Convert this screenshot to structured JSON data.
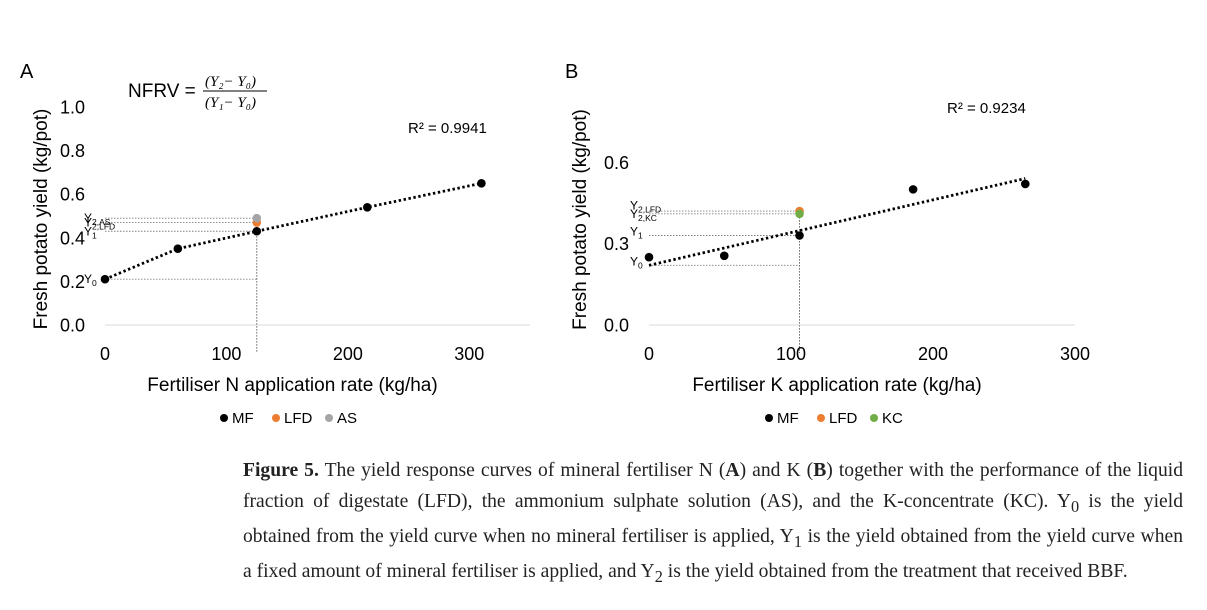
{
  "panels": [
    {
      "label": "A",
      "formula": {
        "lhs": "NFRV =",
        "numerator": "(Y₂− Y₀)",
        "denominator": "(Y₁− Y₀)"
      },
      "r2": "R² = 0.9941",
      "chart_data": {
        "type": "scatter",
        "xlabel": "Fertiliser N application rate (kg/ha)",
        "ylabel": "Fresh potato yield (kg/pot)",
        "xlim": [
          0,
          350
        ],
        "ylim": [
          0,
          1.0
        ],
        "xticks": [
          0,
          100,
          200,
          300
        ],
        "xtick_labels": [
          "0",
          "100",
          "200",
          "300"
        ],
        "yticks": [
          0,
          0.2,
          0.4,
          0.6,
          0.8,
          1.0
        ],
        "ytick_labels": [
          "0.0",
          "0.2",
          "0.4",
          "0.6",
          "0.8",
          "1.0"
        ],
        "series": [
          {
            "name": "MF",
            "color": "#000000",
            "points": [
              [
                0,
                0.21
              ],
              [
                60,
                0.35
              ],
              [
                125,
                0.43
              ],
              [
                216,
                0.54
              ],
              [
                310,
                0.65
              ]
            ]
          },
          {
            "name": "LFD",
            "color": "#ed7d31",
            "points": [
              [
                125,
                0.47
              ]
            ]
          },
          {
            "name": "AS",
            "color": "#a5a5a5",
            "points": [
              [
                125,
                0.49
              ]
            ]
          }
        ],
        "trendline": {
          "style": "dotted",
          "x": [
            0,
            60,
            125,
            216,
            310
          ],
          "y": [
            0.21,
            0.35,
            0.43,
            0.54,
            0.65
          ]
        },
        "reference_lines": {
          "x": 125,
          "y": [
            0.21,
            0.43,
            0.47,
            0.49
          ]
        },
        "annotations": [
          {
            "main": "Y",
            "sub": "2,AS",
            "x": 0,
            "y": 0.49
          },
          {
            "main": "Y",
            "sub": "2,LFD",
            "x": 0,
            "y": 0.47
          },
          {
            "main": "Y",
            "sub": "1",
            "x": 0,
            "y": 0.43
          },
          {
            "main": "Y",
            "sub": "0",
            "x": 0,
            "y": 0.21
          }
        ],
        "legend_position": "bottom"
      }
    },
    {
      "label": "B",
      "r2": "R² = 0.9234",
      "chart_data": {
        "type": "scatter",
        "xlabel": "Fertiliser K application rate (kg/ha)",
        "ylabel": "Fresh potato yield (kg/pot)",
        "xlim": [
          0,
          300
        ],
        "ylim": [
          0,
          0.8
        ],
        "xticks": [
          0,
          100,
          200,
          300
        ],
        "xtick_labels": [
          "0",
          "100",
          "200",
          "300"
        ],
        "yticks": [
          0,
          0.3,
          0.6
        ],
        "ytick_labels": [
          "0.0",
          "0.3",
          "0.6"
        ],
        "series": [
          {
            "name": "MF",
            "color": "#000000",
            "points": [
              [
                0,
                0.25
              ],
              [
                53,
                0.255
              ],
              [
                106,
                0.33
              ],
              [
                186,
                0.5
              ],
              [
                265,
                0.52
              ]
            ]
          },
          {
            "name": "LFD",
            "color": "#ed7d31",
            "points": [
              [
                106,
                0.42
              ]
            ]
          },
          {
            "name": "KC",
            "color": "#70ad47",
            "points": [
              [
                106,
                0.41
              ]
            ]
          }
        ],
        "trendline": {
          "style": "dotted",
          "x": [
            0,
            265
          ],
          "y": [
            0.22,
            0.54
          ]
        },
        "reference_lines": {
          "x": 106,
          "y": [
            0.22,
            0.33,
            0.41,
            0.42
          ]
        },
        "annotations": [
          {
            "main": "Y",
            "sub": "2,LFD",
            "x": 0,
            "y": 0.44
          },
          {
            "main": "Y",
            "sub": "2,KC",
            "x": 0,
            "y": 0.41
          },
          {
            "main": "Y",
            "sub": "1",
            "x": 0,
            "y": 0.345
          },
          {
            "main": "Y",
            "sub": "0",
            "x": 0,
            "y": 0.235
          }
        ],
        "legend_position": "bottom"
      }
    }
  ],
  "caption": {
    "label": "Figure 5.",
    "t1": " The yield response curves of mineral fertiliser N (",
    "a": "A",
    "t2": ") and K (",
    "b": "B",
    "t3": ") together with the performance of the liquid fraction of digestate (LFD), the ammonium sulphate solution (AS), and the K-concentrate (KC). Y",
    "s0": "0",
    "t4": " is the yield obtained from the yield curve when no mineral fertiliser is applied, Y",
    "s1": "1",
    "t5": " is the yield obtained from the yield curve when a fixed amount of mineral fertiliser is applied, and Y",
    "s2": "2",
    "t6": " is the yield obtained from the treatment that received BBF."
  }
}
